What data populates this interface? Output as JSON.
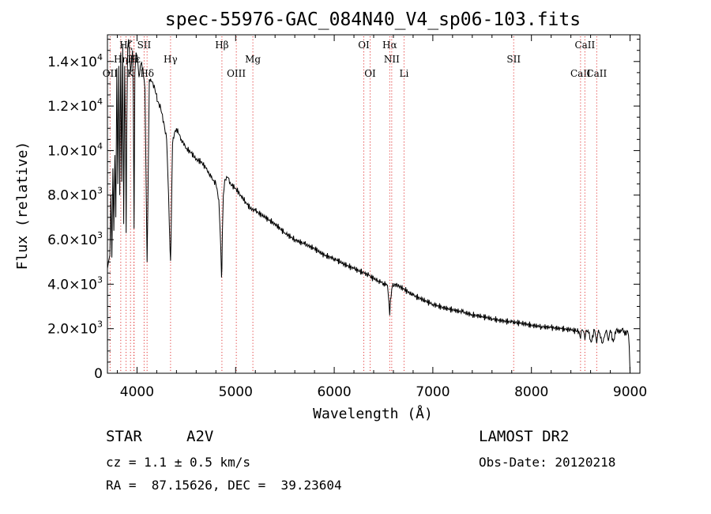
{
  "chart_data": {
    "type": "line",
    "title": "spec-55976-GAC_084N40_V4_sp06-103.fits",
    "xlabel": "Wavelength (Å)",
    "ylabel": "Flux (relative)",
    "xlim": [
      3700,
      9100
    ],
    "ylim": [
      0,
      15200
    ],
    "x_ticks": [
      4000,
      5000,
      6000,
      7000,
      8000,
      9000
    ],
    "y_ticks": [
      {
        "value": 0,
        "mant": "0",
        "exp": ""
      },
      {
        "value": 2000,
        "mant": "2.0×10",
        "exp": "3"
      },
      {
        "value": 4000,
        "mant": "4.0×10",
        "exp": "3"
      },
      {
        "value": 6000,
        "mant": "6.0×10",
        "exp": "3"
      },
      {
        "value": 8000,
        "mant": "8.0×10",
        "exp": "3"
      },
      {
        "value": 10000,
        "mant": "1.0×10",
        "exp": "4"
      },
      {
        "value": 12000,
        "mant": "1.2×10",
        "exp": "4"
      },
      {
        "value": 14000,
        "mant": "1.4×10",
        "exp": "4"
      }
    ],
    "series": [
      {
        "x": [
          3700,
          3715,
          3725,
          3735,
          3745,
          3755,
          3765,
          3775,
          3785,
          3795,
          3805,
          3815,
          3825,
          3835,
          3845,
          3855,
          3865,
          3875,
          3885,
          3890,
          3895,
          3905,
          3915,
          3925,
          3935,
          3945,
          3955,
          3962,
          3970,
          3978,
          3990,
          4005,
          4020,
          4040,
          4060,
          4080,
          4095,
          4102,
          4110,
          4125,
          4150,
          4180,
          4210,
          4240,
          4270,
          4300,
          4320,
          4335,
          4340,
          4345,
          4360,
          4380,
          4400,
          4450,
          4500,
          4550,
          4600,
          4650,
          4700,
          4750,
          4800,
          4830,
          4850,
          4857,
          4861,
          4866,
          4875,
          4890,
          4920,
          4950,
          5000,
          5050,
          5100,
          5150,
          5200,
          5300,
          5400,
          5500,
          5600,
          5700,
          5800,
          5900,
          6000,
          6100,
          6200,
          6300,
          6350,
          6400,
          6450,
          6500,
          6540,
          6555,
          6563,
          6570,
          6590,
          6620,
          6700,
          6800,
          6900,
          7000,
          7100,
          7200,
          7300,
          7400,
          7500,
          7600,
          7700,
          7800,
          7900,
          8000,
          8100,
          8200,
          8300,
          8400,
          8450,
          8480,
          8498,
          8510,
          8530,
          8542,
          8555,
          8580,
          8605,
          8640,
          8662,
          8680,
          8720,
          8760,
          8780,
          8800,
          8830,
          8860,
          8880,
          8900,
          8920,
          8940,
          8960,
          8975,
          8985,
          8992,
          8998,
          9000
        ],
        "y": [
          4700,
          5100,
          5300,
          8000,
          5200,
          9200,
          6400,
          9800,
          7000,
          13700,
          8500,
          13800,
          8000,
          14400,
          8600,
          14800,
          6700,
          13800,
          9900,
          6300,
          10500,
          14600,
          15000,
          14200,
          13500,
          14000,
          14500,
          12500,
          6500,
          13500,
          14400,
          14200,
          13300,
          13900,
          13700,
          12800,
          7500,
          5000,
          7600,
          13200,
          13100,
          12800,
          12200,
          11900,
          11300,
          10500,
          8000,
          5500,
          5050,
          6000,
          10300,
          10800,
          11000,
          10500,
          10100,
          9900,
          9600,
          9500,
          9200,
          8800,
          8500,
          7800,
          5600,
          4300,
          4700,
          6300,
          8000,
          8700,
          8800,
          8500,
          8300,
          8000,
          7700,
          7400,
          7300,
          7000,
          6700,
          6300,
          6000,
          5800,
          5600,
          5300,
          5150,
          4900,
          4700,
          4500,
          4400,
          4250,
          4150,
          4050,
          3950,
          3200,
          2600,
          3300,
          3900,
          4000,
          3800,
          3500,
          3300,
          3100,
          2950,
          2850,
          2750,
          2620,
          2550,
          2450,
          2350,
          2300,
          2250,
          2150,
          2100,
          2050,
          2000,
          1950,
          1900,
          1900,
          1550,
          1950,
          1850,
          1500,
          1950,
          1800,
          1400,
          1950,
          1350,
          1950,
          1350,
          1950,
          1450,
          1950,
          1400,
          1950,
          1950,
          1800,
          2000,
          1900,
          1700,
          1900,
          1700,
          1200,
          300,
          0
        ]
      }
    ],
    "line_markers": [
      {
        "wl": 3727,
        "label": "OII",
        "row": 2
      },
      {
        "wl": 3835,
        "label": "Hη",
        "row": 1
      },
      {
        "wl": 3889,
        "label": "Hζ",
        "row": 0
      },
      {
        "wl": 3934,
        "label": "K",
        "row": 2
      },
      {
        "wl": 3970,
        "label": "Hε",
        "row": 1
      },
      {
        "wl": 3968,
        "label": "H",
        "row": 1
      },
      {
        "wl": 4072,
        "label": "SII",
        "row": 0
      },
      {
        "wl": 4102,
        "label": "Hδ",
        "row": 2
      },
      {
        "wl": 4340,
        "label": "Hγ",
        "row": 1
      },
      {
        "wl": 4861,
        "label": "Hβ",
        "row": 0
      },
      {
        "wl": 5007,
        "label": "OIII",
        "row": 2
      },
      {
        "wl": 5175,
        "label": "Mg",
        "row": 1
      },
      {
        "wl": 6300,
        "label": "OI",
        "row": 0
      },
      {
        "wl": 6364,
        "label": "OI",
        "row": 2
      },
      {
        "wl": 6563,
        "label": "Hα",
        "row": 0
      },
      {
        "wl": 6583,
        "label": "NII",
        "row": 1
      },
      {
        "wl": 6708,
        "label": "Li",
        "row": 2
      },
      {
        "wl": 7820,
        "label": "SII",
        "row": 1
      },
      {
        "wl": 8498,
        "label": "CaII",
        "row": 2
      },
      {
        "wl": 8542,
        "label": "CaII",
        "row": 0
      },
      {
        "wl": 8662,
        "label": "CaII",
        "row": 2
      }
    ]
  },
  "info": {
    "object_class": "STAR",
    "subclass": "A2V",
    "survey": "LAMOST DR2",
    "redshift": "cz = 1.1 ± 0.5 km/s",
    "obs_date": "Obs-Date: 20120218",
    "coords": "RA =  87.15626, DEC =  39.23604"
  }
}
